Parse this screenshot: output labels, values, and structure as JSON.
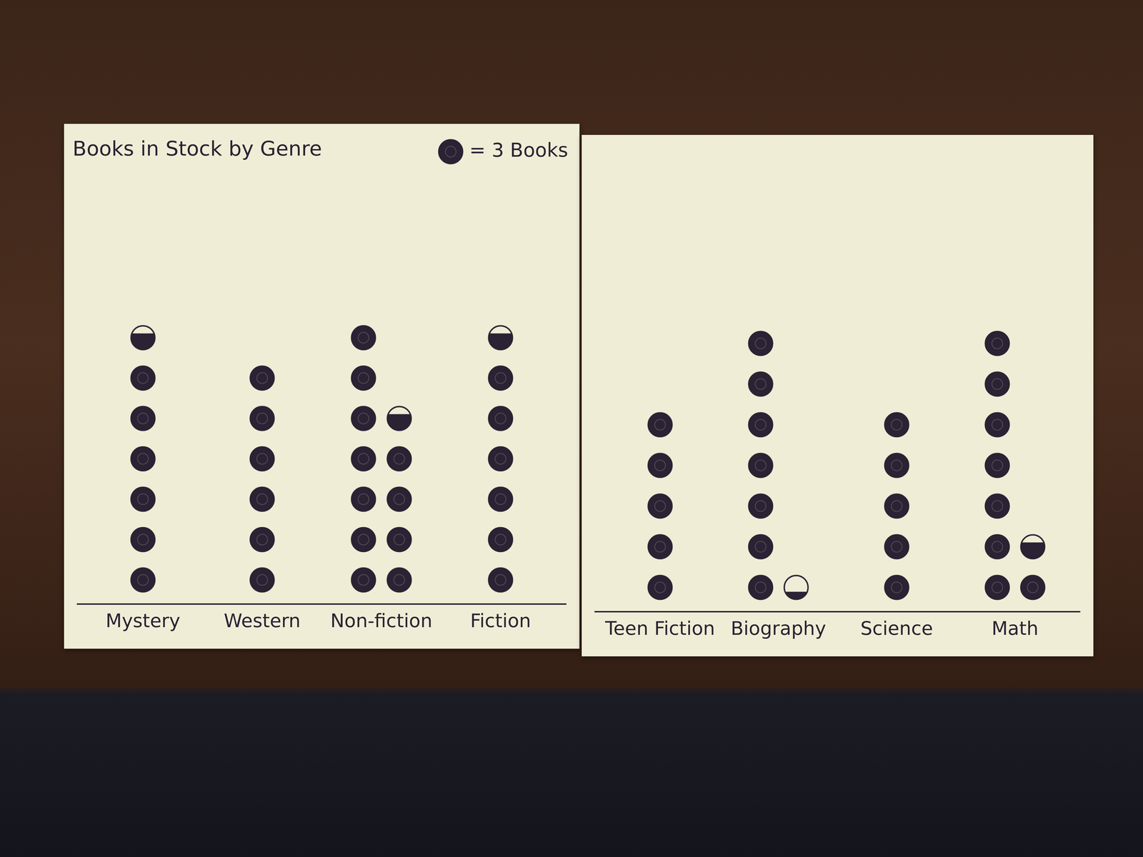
{
  "chart_data": [
    {
      "type": "pictograph",
      "title": "Books in Stock by Genre",
      "key": {
        "value": 3,
        "label": "= 3 Books"
      },
      "categories": [
        "Mystery",
        "Western",
        "Non-fiction",
        "Fiction"
      ],
      "values": [
        20,
        18,
        35,
        20
      ],
      "color": "#2b2233",
      "tick_labels": "x"
    },
    {
      "type": "pictograph",
      "categories": [
        "Teen Fiction",
        "Biography",
        "Science",
        "Math"
      ],
      "values": [
        15,
        22,
        15,
        26
      ],
      "color": "#2b2233",
      "tick_labels": "x"
    }
  ]
}
